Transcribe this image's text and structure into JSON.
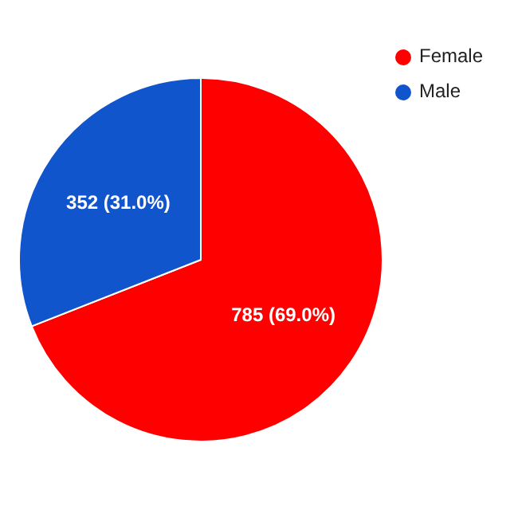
{
  "chart_data": {
    "type": "pie",
    "categories": [
      "Female",
      "Male"
    ],
    "values": [
      785,
      352
    ],
    "colors": [
      "#ff0000",
      "#1155cc"
    ],
    "value_labels": [
      "785 (69.0%)",
      "352 (31.0%)"
    ],
    "legend": "top right"
  }
}
